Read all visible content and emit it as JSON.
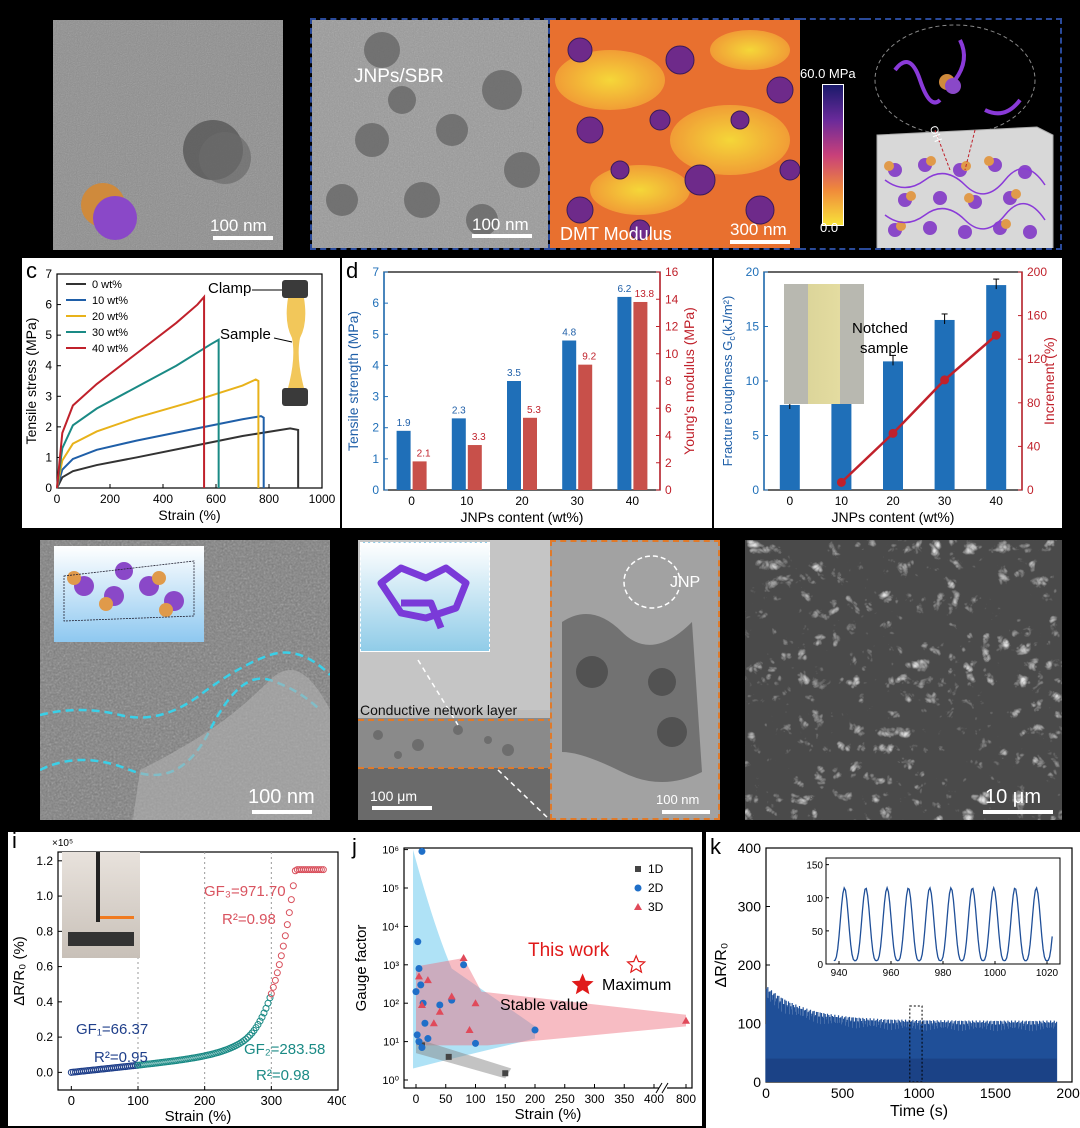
{
  "row1": {
    "tem_scale": "100 nm",
    "sbr_label": "JNPs/SBR",
    "sbr_scale": "100 nm",
    "afm_label": "DMT Modulus",
    "afm_scale": "300 nm",
    "colorbar_max": "60.0 MPa",
    "colorbar_min": "0.0",
    "schematic_oh": "OH"
  },
  "panel_c": {
    "letter": "c",
    "xlabel": "Strain (%)",
    "ylabel": "Tensile stress (MPa)",
    "clamp_label": "Clamp",
    "sample_label": "Sample",
    "legend": [
      "0 wt%",
      "10 wt%",
      "20 wt%",
      "30 wt%",
      "40 wt%"
    ],
    "colors": [
      "#333333",
      "#1f5fa8",
      "#e8b21a",
      "#1a8a85",
      "#c0212b"
    ],
    "chart_data": {
      "type": "line",
      "xlim": [
        0,
        1000
      ],
      "ylim": [
        0,
        7
      ],
      "xticks": [
        "0",
        "200",
        "400",
        "600",
        "800",
        "1000"
      ],
      "yticks": [
        "0",
        "1",
        "2",
        "3",
        "4",
        "5",
        "6",
        "7"
      ],
      "series": [
        {
          "name": "0 wt%",
          "x": [
            0,
            20,
            60,
            150,
            300,
            500,
            700,
            880,
            910
          ],
          "y": [
            0,
            0.35,
            0.55,
            0.75,
            1.0,
            1.35,
            1.7,
            1.95,
            1.9
          ]
        },
        {
          "name": "10 wt%",
          "x": [
            0,
            20,
            60,
            150,
            300,
            500,
            700,
            770,
            780
          ],
          "y": [
            0,
            0.6,
            0.95,
            1.25,
            1.55,
            1.9,
            2.25,
            2.35,
            2.3
          ]
        },
        {
          "name": "20 wt%",
          "x": [
            0,
            20,
            60,
            150,
            300,
            500,
            700,
            750,
            760
          ],
          "y": [
            0,
            0.9,
            1.45,
            1.85,
            2.3,
            2.8,
            3.35,
            3.55,
            3.5
          ]
        },
        {
          "name": "30 wt%",
          "x": [
            0,
            20,
            60,
            150,
            300,
            450,
            580,
            610
          ],
          "y": [
            0,
            1.3,
            2.05,
            2.6,
            3.3,
            4.0,
            4.7,
            4.85
          ]
        },
        {
          "name": "40 wt%",
          "x": [
            0,
            20,
            60,
            150,
            300,
            450,
            530,
            555
          ],
          "y": [
            0,
            1.8,
            2.7,
            3.4,
            4.4,
            5.4,
            6.0,
            6.25
          ]
        }
      ]
    }
  },
  "panel_d": {
    "letter": "d",
    "xlabel": "JNPs content (wt%)",
    "ylabel_left": "Tensile strength (MPa)",
    "ylabel_right": "Young's modulus (MPa)",
    "chart_data": {
      "type": "bar",
      "categories": [
        "0",
        "10",
        "20",
        "30",
        "40"
      ],
      "ylim_left": [
        0,
        7
      ],
      "ylim_right": [
        0,
        16
      ],
      "yticks_left": [
        "0",
        "1",
        "2",
        "3",
        "4",
        "5",
        "6",
        "7"
      ],
      "yticks_right": [
        "0",
        "2",
        "4",
        "6",
        "8",
        "10",
        "12",
        "14",
        "16"
      ],
      "series": [
        {
          "name": "Tensile strength",
          "axis": "left",
          "color": "#1f6fb8",
          "values": [
            1.9,
            2.3,
            3.5,
            4.8,
            6.2
          ],
          "labels": [
            "1.9",
            "2.3",
            "3.5",
            "4.8",
            "6.2"
          ]
        },
        {
          "name": "Young's modulus",
          "axis": "right",
          "color": "#c8504a",
          "values": [
            2.1,
            3.3,
            5.3,
            9.2,
            13.8
          ],
          "labels": [
            "2.1",
            "3.3",
            "5.3",
            "9.2",
            "13.8"
          ]
        }
      ]
    }
  },
  "panel_e": {
    "xlabel": "JNPs content (wt%)",
    "ylabel_left": "Fracture toughness G",
    "ylabel_left_sub": "c",
    "ylabel_left_unit": "(kJ/m²)",
    "ylabel_right": "Increment (%)",
    "inset_label_1": "Notched",
    "inset_label_2": "sample",
    "chart_data": {
      "type": "bar",
      "categories": [
        "0",
        "10",
        "20",
        "30",
        "40"
      ],
      "ylim_left": [
        0,
        20
      ],
      "ylim_right": [
        0,
        200
      ],
      "yticks_left": [
        "0",
        "5",
        "10",
        "15",
        "20"
      ],
      "yticks_right": [
        "0",
        "40",
        "80",
        "120",
        "160",
        "200"
      ],
      "bars": {
        "name": "Fracture toughness",
        "color": "#1f6fb8",
        "values": [
          7.8,
          8.3,
          11.8,
          15.6,
          18.8
        ]
      },
      "line": {
        "name": "Increment",
        "color": "#c0212b",
        "categories": [
          "10",
          "20",
          "30",
          "40"
        ],
        "values": [
          7,
          52,
          101,
          142
        ]
      }
    }
  },
  "row3": {
    "tem_scale": "100 nm",
    "cross_label": "Conductive network layer",
    "cross_scale": "100 μm",
    "jnp_label": "JNP",
    "jnp_scale": "100 nm",
    "sem_scale": "10 μm"
  },
  "panel_i": {
    "letter": "i",
    "xlabel": "Strain (%)",
    "ylabel": "ΔR/R₀ (%)",
    "exponent": "×10⁵",
    "gf1": "GF₁=66.37",
    "r1": "R²=0.95",
    "gf2": "GF₂=283.58",
    "r2": "R²=0.98",
    "gf3": "GF₃=971.70",
    "r3": "R²=0.98",
    "chart_data": {
      "type": "scatter",
      "xlim": [
        -20,
        400
      ],
      "ylim": [
        -0.1,
        1.25
      ],
      "xticks": [
        "0",
        "100",
        "200",
        "300",
        "400"
      ],
      "yticks": [
        "0.0",
        "0.2",
        "0.4",
        "0.6",
        "0.8",
        "1.0",
        "1.2"
      ],
      "segments": [
        {
          "name": "GF1",
          "color": "#1f3f8a",
          "range": [
            0,
            100
          ]
        },
        {
          "name": "GF2",
          "color": "#1a8a85",
          "range": [
            100,
            300
          ]
        },
        {
          "name": "GF3",
          "color": "#d9535f",
          "range": [
            300,
            380
          ]
        }
      ]
    }
  },
  "panel_j": {
    "letter": "j",
    "xlabel": "Strain (%)",
    "ylabel": "Gauge factor",
    "legend": [
      "1D",
      "2D",
      "3D"
    ],
    "this_work": "This work",
    "maximum": "Maximum",
    "stable": "Stable value",
    "chart_data": {
      "type": "scatter",
      "xticks": [
        "0",
        "50",
        "100",
        "150",
        "200",
        "250",
        "300",
        "350",
        "400",
        "800"
      ],
      "yticks": [
        "10⁰",
        "10¹",
        "10²",
        "10³",
        "10⁴",
        "10⁵",
        "10⁶"
      ],
      "series": [
        {
          "name": "1D",
          "points": [
            [
              10,
              8
            ],
            [
              55,
              4
            ],
            [
              150,
              1.5
            ]
          ]
        },
        {
          "name": "2D",
          "points": [
            [
              10,
              900000
            ],
            [
              3,
              4000
            ],
            [
              5,
              800
            ],
            [
              8,
              300
            ],
            [
              12,
              100
            ],
            [
              15,
              30
            ],
            [
              5,
              10
            ],
            [
              10,
              7
            ],
            [
              20,
              12
            ],
            [
              40,
              90
            ],
            [
              60,
              120
            ],
            [
              80,
              1000
            ],
            [
              100,
              9
            ],
            [
              200,
              20
            ],
            [
              0,
              200
            ],
            [
              2,
              15
            ]
          ]
        },
        {
          "name": "3D",
          "points": [
            [
              5,
              500
            ],
            [
              20,
              400
            ],
            [
              40,
              60
            ],
            [
              60,
              150
            ],
            [
              80,
              1500
            ],
            [
              90,
              20
            ],
            [
              100,
              100
            ],
            [
              30,
              30
            ],
            [
              10,
              90
            ],
            [
              800,
              35
            ]
          ]
        }
      ],
      "this_work_stable": [
        280,
        300
      ],
      "this_work_max": [
        370,
        1000
      ]
    }
  },
  "panel_k": {
    "letter": "k",
    "xlabel": "Time (s)",
    "ylabel": "ΔR/R₀",
    "chart_data": {
      "type": "line",
      "xlim": [
        0,
        2000
      ],
      "ylim": [
        0,
        400
      ],
      "xticks": [
        "0",
        "500",
        "1000",
        "1500",
        "2000"
      ],
      "yticks": [
        "0",
        "100",
        "200",
        "300",
        "400"
      ],
      "inset_xticks": [
        "940",
        "960",
        "980",
        "1000",
        "1020"
      ],
      "inset_yticks": [
        "0",
        "50",
        "100",
        "150"
      ],
      "inset_peak": 115,
      "inset_cycles": 10
    }
  }
}
